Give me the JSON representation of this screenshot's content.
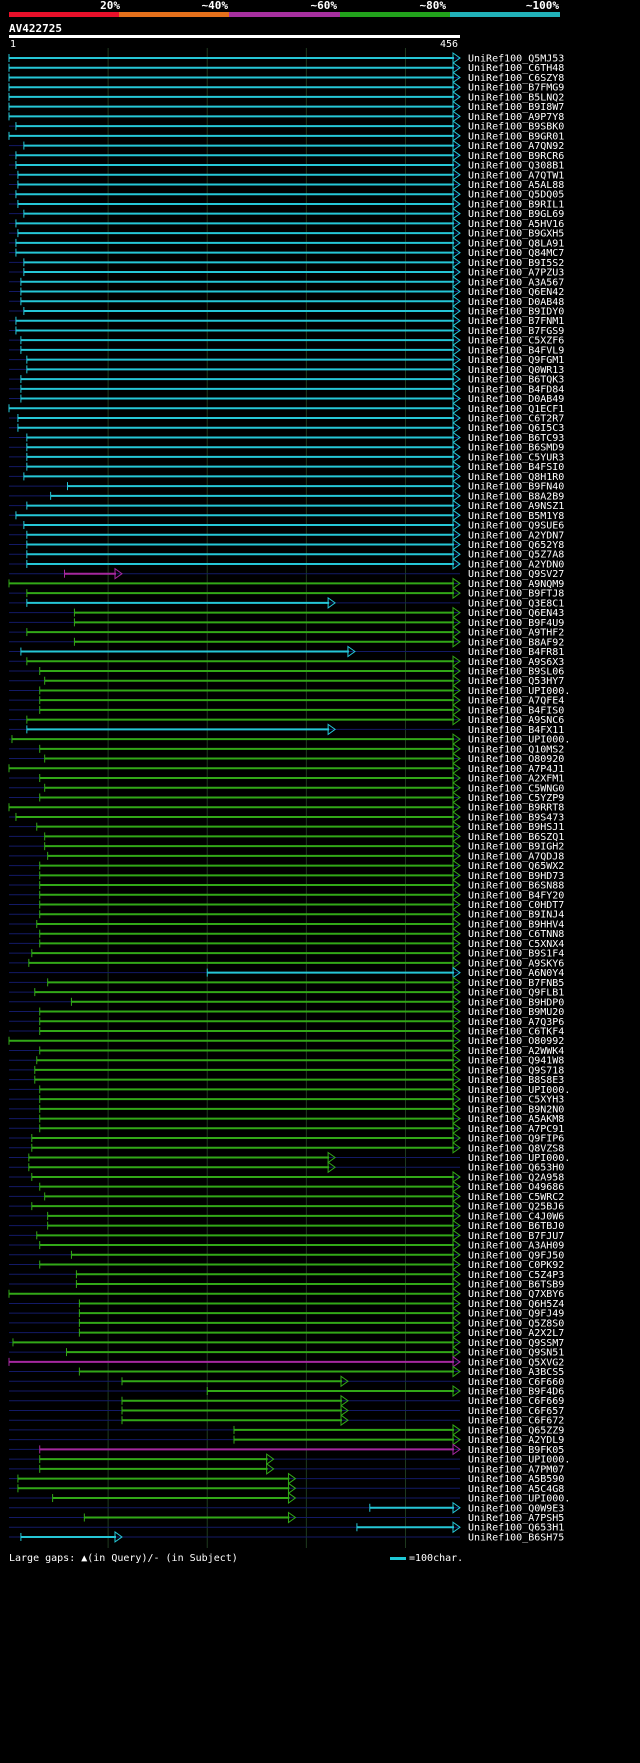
{
  "colors": {
    "bg": "#000000",
    "grid": "#1f3a1f",
    "baseline": "#131a66",
    "cyan": "#25c6d6",
    "green": "#32a817",
    "magenta": "#a5289f",
    "red": "#e8102a",
    "orange": "#e4701b",
    "purple": "#a7309f",
    "olive": "#22a21c",
    "teal": "#21b2b9",
    "gap": "#ffff88"
  },
  "scale": {
    "labels": [
      "20%",
      "~40%",
      "~60%",
      "~80%",
      "~100%"
    ],
    "colors": [
      "#e8102a",
      "#e4701b",
      "#a7309f",
      "#22a21c",
      "#21b2b9"
    ]
  },
  "query": {
    "id": "AV422725",
    "start": "1",
    "end": "456"
  },
  "legend": {
    "gaps_text": "Large gaps: ▲(in Query)/- (in Subject)",
    "scale_text": "=100char."
  },
  "chart_data": {
    "type": "alignment-overview",
    "query_length": 456,
    "hits": [
      {
        "name": "UniRef100_Q5MJ53",
        "start": 1,
        "end": 456,
        "color": "cyan"
      },
      {
        "name": "UniRef100_C6TH48",
        "start": 1,
        "end": 456,
        "color": "cyan"
      },
      {
        "name": "UniRef100_C6SZY8",
        "start": 1,
        "end": 456,
        "color": "cyan"
      },
      {
        "name": "UniRef100_B7FMG9",
        "start": 1,
        "end": 456,
        "color": "cyan"
      },
      {
        "name": "UniRef100_B5LNQ2",
        "start": 1,
        "end": 456,
        "color": "cyan"
      },
      {
        "name": "UniRef100_B9I8W7",
        "start": 1,
        "end": 456,
        "color": "cyan"
      },
      {
        "name": "UniRef100_A9P7Y8",
        "start": 1,
        "end": 456,
        "color": "cyan"
      },
      {
        "name": "UniRef100_B9SBK0",
        "start": 8,
        "end": 456,
        "color": "cyan"
      },
      {
        "name": "UniRef100_B9GR01",
        "start": 1,
        "end": 456,
        "color": "cyan"
      },
      {
        "name": "UniRef100_A7QN92",
        "start": 16,
        "end": 456,
        "color": "cyan"
      },
      {
        "name": "UniRef100_B9RCR6",
        "start": 8,
        "end": 456,
        "color": "cyan"
      },
      {
        "name": "UniRef100_Q308B1",
        "start": 8,
        "end": 456,
        "color": "cyan"
      },
      {
        "name": "UniRef100_A7QTW1",
        "start": 10,
        "end": 456,
        "color": "cyan"
      },
      {
        "name": "UniRef100_A5AL88",
        "start": 10,
        "end": 456,
        "color": "cyan"
      },
      {
        "name": "UniRef100_Q5DQ05",
        "start": 8,
        "end": 456,
        "color": "cyan"
      },
      {
        "name": "UniRef100_B9RIL1",
        "start": 10,
        "end": 456,
        "color": "cyan"
      },
      {
        "name": "UniRef100_B9GL69",
        "start": 16,
        "end": 456,
        "color": "cyan"
      },
      {
        "name": "UniRef100_A5HV16",
        "start": 8,
        "end": 456,
        "color": "cyan"
      },
      {
        "name": "UniRef100_B9GXH5",
        "start": 10,
        "end": 456,
        "color": "cyan"
      },
      {
        "name": "UniRef100_Q8LA91",
        "start": 8,
        "end": 456,
        "color": "cyan"
      },
      {
        "name": "UniRef100_Q84MC7",
        "start": 8,
        "end": 456,
        "color": "cyan"
      },
      {
        "name": "UniRef100_B9I5S2",
        "start": 16,
        "end": 456,
        "color": "cyan"
      },
      {
        "name": "UniRef100_A7PZU3",
        "start": 16,
        "end": 456,
        "color": "cyan"
      },
      {
        "name": "UniRef100_A3A567",
        "start": 13,
        "end": 456,
        "color": "cyan"
      },
      {
        "name": "UniRef100_Q6EN42",
        "start": 13,
        "end": 456,
        "color": "cyan"
      },
      {
        "name": "UniRef100_D0AB48",
        "start": 13,
        "end": 456,
        "color": "cyan"
      },
      {
        "name": "UniRef100_B9IDY0",
        "start": 16,
        "end": 456,
        "color": "cyan"
      },
      {
        "name": "UniRef100_B7FNM1",
        "start": 8,
        "end": 456,
        "color": "cyan"
      },
      {
        "name": "UniRef100_B7FGS9",
        "start": 8,
        "end": 456,
        "color": "cyan"
      },
      {
        "name": "UniRef100_C5XZF6",
        "start": 13,
        "end": 456,
        "color": "cyan"
      },
      {
        "name": "UniRef100_B4FVL9",
        "start": 13,
        "end": 456,
        "color": "cyan"
      },
      {
        "name": "UniRef100_Q9FGM1",
        "start": 19,
        "end": 456,
        "color": "cyan"
      },
      {
        "name": "UniRef100_Q0WR13",
        "start": 19,
        "end": 456,
        "color": "cyan"
      },
      {
        "name": "UniRef100_B6TQK3",
        "start": 13,
        "end": 456,
        "color": "cyan"
      },
      {
        "name": "UniRef100_B4FD84",
        "start": 13,
        "end": 456,
        "color": "cyan"
      },
      {
        "name": "UniRef100_D0AB49",
        "start": 13,
        "end": 456,
        "color": "cyan"
      },
      {
        "name": "UniRef100_Q1ECF1",
        "start": 1,
        "end": 456,
        "color": "cyan"
      },
      {
        "name": "UniRef100_C6T2R7",
        "start": 10,
        "end": 456,
        "color": "cyan"
      },
      {
        "name": "UniRef100_Q6I5C3",
        "start": 10,
        "end": 456,
        "color": "cyan"
      },
      {
        "name": "UniRef100_B6TC93",
        "start": 19,
        "end": 456,
        "color": "cyan"
      },
      {
        "name": "UniRef100_B6SMD9",
        "start": 19,
        "end": 456,
        "color": "cyan"
      },
      {
        "name": "UniRef100_C5YUR3",
        "start": 19,
        "end": 456,
        "color": "cyan"
      },
      {
        "name": "UniRef100_B4FSI0",
        "start": 19,
        "end": 456,
        "color": "cyan"
      },
      {
        "name": "UniRef100_Q8H1R0",
        "start": 16,
        "end": 456,
        "color": "cyan"
      },
      {
        "name": "UniRef100_B9FN40",
        "start": 60,
        "end": 456,
        "color": "cyan"
      },
      {
        "name": "UniRef100_B8A2B9",
        "start": 43,
        "end": 456,
        "color": "cyan"
      },
      {
        "name": "UniRef100_A9NSZ1",
        "start": 19,
        "end": 456,
        "color": "cyan"
      },
      {
        "name": "UniRef100_B5M1Y8",
        "start": 8,
        "end": 456,
        "color": "cyan"
      },
      {
        "name": "UniRef100_Q9SUE6",
        "start": 16,
        "end": 456,
        "color": "cyan"
      },
      {
        "name": "UniRef100_A2YDN7",
        "start": 19,
        "end": 456,
        "color": "cyan"
      },
      {
        "name": "UniRef100_Q652Y8",
        "start": 19,
        "end": 456,
        "color": "cyan"
      },
      {
        "name": "UniRef100_Q5Z7A8",
        "start": 19,
        "end": 456,
        "color": "cyan"
      },
      {
        "name": "UniRef100_A2YDN0",
        "start": 19,
        "end": 456,
        "color": "cyan"
      },
      {
        "name": "UniRef100_Q9SV27",
        "start": 57,
        "end": 115,
        "color": "magenta"
      },
      {
        "name": "UniRef100_A9NQM9",
        "start": 1,
        "end": 456,
        "color": "green"
      },
      {
        "name": "UniRef100_B9FTJ8",
        "start": 19,
        "end": 456,
        "color": "green"
      },
      {
        "name": "UniRef100_Q3E8C1",
        "start": 19,
        "end": 330,
        "color": "cyan"
      },
      {
        "name": "UniRef100_Q6EN43",
        "start": 67,
        "end": 456,
        "color": "green"
      },
      {
        "name": "UniRef100_B9F4U9",
        "start": 67,
        "end": 456,
        "color": "green"
      },
      {
        "name": "UniRef100_A9THF2",
        "start": 19,
        "end": 456,
        "color": "green"
      },
      {
        "name": "UniRef100_B8AF92",
        "start": 67,
        "end": 456,
        "color": "green"
      },
      {
        "name": "UniRef100_B4FR81",
        "start": 13,
        "end": 350,
        "color": "cyan"
      },
      {
        "name": "UniRef100_A9S6X3",
        "start": 19,
        "end": 456,
        "color": "green"
      },
      {
        "name": "UniRef100_B9SL06",
        "start": 32,
        "end": 456,
        "color": "green"
      },
      {
        "name": "UniRef100_Q53HY7",
        "start": 37,
        "end": 456,
        "color": "green"
      },
      {
        "name": "UniRef100_UPI000..",
        "start": 32,
        "end": 456,
        "color": "green"
      },
      {
        "name": "UniRef100_A7QFE4",
        "start": 32,
        "end": 456,
        "color": "green"
      },
      {
        "name": "UniRef100_B4FIS0",
        "start": 32,
        "end": 456,
        "color": "green"
      },
      {
        "name": "UniRef100_A9SNC6",
        "start": 19,
        "end": 456,
        "color": "green"
      },
      {
        "name": "UniRef100_B4FX11",
        "start": 19,
        "end": 330,
        "color": "cyan"
      },
      {
        "name": "UniRef100_UPI000..",
        "start": 4,
        "end": 456,
        "color": "green"
      },
      {
        "name": "UniRef100_Q10MS2",
        "start": 32,
        "end": 456,
        "color": "green"
      },
      {
        "name": "UniRef100_O80920",
        "start": 37,
        "end": 456,
        "color": "green"
      },
      {
        "name": "UniRef100_A7P4J1",
        "start": 1,
        "end": 456,
        "color": "green"
      },
      {
        "name": "UniRef100_A2XFM1",
        "start": 32,
        "end": 456,
        "color": "green"
      },
      {
        "name": "UniRef100_C5WNG0",
        "start": 37,
        "end": 456,
        "color": "green"
      },
      {
        "name": "UniRef100_C5YZP9",
        "start": 32,
        "end": 456,
        "color": "green"
      },
      {
        "name": "UniRef100_B9RRT8",
        "start": 1,
        "end": 456,
        "color": "green"
      },
      {
        "name": "UniRef100_B9S473",
        "start": 8,
        "end": 456,
        "color": "green"
      },
      {
        "name": "UniRef100_B9HSJ1",
        "start": 29,
        "end": 456,
        "color": "green"
      },
      {
        "name": "UniRef100_B6SZQ1",
        "start": 37,
        "end": 456,
        "color": "green"
      },
      {
        "name": "UniRef100_B9IGH2",
        "start": 37,
        "end": 456,
        "color": "green"
      },
      {
        "name": "UniRef100_A7QDJ8",
        "start": 40,
        "end": 456,
        "color": "green"
      },
      {
        "name": "UniRef100_Q65WX2",
        "start": 32,
        "end": 456,
        "color": "green"
      },
      {
        "name": "UniRef100_B9HD73",
        "start": 32,
        "end": 456,
        "color": "green"
      },
      {
        "name": "UniRef100_B6SN88",
        "start": 32,
        "end": 456,
        "color": "green"
      },
      {
        "name": "UniRef100_B4FY20",
        "start": 32,
        "end": 456,
        "color": "green"
      },
      {
        "name": "UniRef100_C0HDT7",
        "start": 32,
        "end": 456,
        "color": "green"
      },
      {
        "name": "UniRef100_B9INJ4",
        "start": 32,
        "end": 456,
        "color": "green"
      },
      {
        "name": "UniRef100_B9HHV4",
        "start": 29,
        "end": 456,
        "color": "green"
      },
      {
        "name": "UniRef100_C6TNN8",
        "start": 32,
        "end": 456,
        "color": "green"
      },
      {
        "name": "UniRef100_C5XNX4",
        "start": 32,
        "end": 456,
        "color": "green"
      },
      {
        "name": "UniRef100_B9S1F4",
        "start": 24,
        "end": 456,
        "color": "green"
      },
      {
        "name": "UniRef100_A9SKY6",
        "start": 21,
        "end": 456,
        "color": "green"
      },
      {
        "name": "UniRef100_A6N0Y4",
        "start": 201,
        "end": 456,
        "color": "cyan"
      },
      {
        "name": "UniRef100_B7FNB5",
        "start": 40,
        "end": 456,
        "color": "green"
      },
      {
        "name": "UniRef100_Q9FLB1",
        "start": 27,
        "end": 456,
        "color": "green"
      },
      {
        "name": "UniRef100_B9HDP0",
        "start": 64,
        "end": 456,
        "color": "green"
      },
      {
        "name": "UniRef100_B9MU20",
        "start": 32,
        "end": 456,
        "color": "green"
      },
      {
        "name": "UniRef100_A7Q3P6",
        "start": 32,
        "end": 456,
        "color": "green"
      },
      {
        "name": "UniRef100_C6TKF4",
        "start": 32,
        "end": 456,
        "color": "green"
      },
      {
        "name": "UniRef100_O80992",
        "start": 1,
        "end": 456,
        "color": "green"
      },
      {
        "name": "UniRef100_A2WWK4",
        "start": 32,
        "end": 456,
        "color": "green"
      },
      {
        "name": "UniRef100_Q941W8",
        "start": 29,
        "end": 456,
        "color": "green"
      },
      {
        "name": "UniRef100_Q9S718",
        "start": 27,
        "end": 456,
        "color": "green"
      },
      {
        "name": "UniRef100_B8S8E3",
        "start": 27,
        "end": 456,
        "color": "green"
      },
      {
        "name": "UniRef100_UPI000..",
        "start": 32,
        "end": 456,
        "color": "green"
      },
      {
        "name": "UniRef100_C5XYH3",
        "start": 32,
        "end": 456,
        "color": "green"
      },
      {
        "name": "UniRef100_B9N2N0",
        "start": 32,
        "end": 456,
        "color": "green"
      },
      {
        "name": "UniRef100_A5AKM8",
        "start": 32,
        "end": 456,
        "color": "green"
      },
      {
        "name": "UniRef100_A7PC91",
        "start": 32,
        "end": 456,
        "color": "green"
      },
      {
        "name": "UniRef100_Q9FIP6",
        "start": 24,
        "end": 456,
        "color": "green"
      },
      {
        "name": "UniRef100_Q8VZS8",
        "start": 24,
        "end": 456,
        "color": "green"
      },
      {
        "name": "UniRef100_UPI000..",
        "start": 21,
        "end": 330,
        "color": "green"
      },
      {
        "name": "UniRef100_Q653H0",
        "start": 21,
        "end": 330,
        "color": "green"
      },
      {
        "name": "UniRef100_Q2A958",
        "start": 24,
        "end": 456,
        "color": "green"
      },
      {
        "name": "UniRef100_O49686",
        "start": 32,
        "end": 456,
        "color": "green"
      },
      {
        "name": "UniRef100_C5WRC2",
        "start": 37,
        "end": 456,
        "color": "green"
      },
      {
        "name": "UniRef100_Q25BJ6",
        "start": 24,
        "end": 456,
        "color": "green"
      },
      {
        "name": "UniRef100_C4J0W6",
        "start": 40,
        "end": 456,
        "color": "green"
      },
      {
        "name": "UniRef100_B6TBJ0",
        "start": 40,
        "end": 456,
        "color": "green"
      },
      {
        "name": "UniRef100_B7FJU7",
        "start": 29,
        "end": 456,
        "color": "green"
      },
      {
        "name": "UniRef100_A3AH09",
        "start": 32,
        "end": 456,
        "color": "green"
      },
      {
        "name": "UniRef100_Q9FJ50",
        "start": 64,
        "end": 456,
        "color": "green"
      },
      {
        "name": "UniRef100_C0PK92",
        "start": 32,
        "end": 456,
        "color": "green"
      },
      {
        "name": "UniRef100_C5Z4P3",
        "start": 69,
        "end": 456,
        "color": "green"
      },
      {
        "name": "UniRef100_B6TSB9",
        "start": 69,
        "end": 456,
        "color": "green"
      },
      {
        "name": "UniRef100_Q7XBY6",
        "start": 1,
        "end": 456,
        "color": "green"
      },
      {
        "name": "UniRef100_Q6H5Z4",
        "start": 72,
        "end": 456,
        "color": "green"
      },
      {
        "name": "UniRef100_Q9FJ49",
        "start": 72,
        "end": 456,
        "color": "green"
      },
      {
        "name": "UniRef100_Q5Z8S0",
        "start": 72,
        "end": 456,
        "color": "green"
      },
      {
        "name": "UniRef100_A2X2L7",
        "start": 72,
        "end": 456,
        "color": "green"
      },
      {
        "name": "UniRef100_Q9SSM7",
        "start": 5,
        "end": 456,
        "color": "green"
      },
      {
        "name": "UniRef100_Q9SN51",
        "start": 59,
        "end": 456,
        "color": "green"
      },
      {
        "name": "UniRef100_Q5XVG2",
        "start": 1,
        "end": 456,
        "color": "magenta"
      },
      {
        "name": "UniRef100_A3BCS5",
        "start": 72,
        "end": 456,
        "color": "green"
      },
      {
        "name": "UniRef100_C6F660",
        "start": 115,
        "end": 343,
        "color": "green"
      },
      {
        "name": "UniRef100_B9F4D6",
        "start": 201,
        "end": 456,
        "color": "green"
      },
      {
        "name": "UniRef100_C6F669",
        "start": 115,
        "end": 343,
        "color": "green"
      },
      {
        "name": "UniRef100_C6F657",
        "start": 115,
        "end": 343,
        "color": "green"
      },
      {
        "name": "UniRef100_C6F672",
        "start": 115,
        "end": 343,
        "color": "green"
      },
      {
        "name": "UniRef100_Q65ZZ9",
        "start": 228,
        "end": 456,
        "color": "green"
      },
      {
        "name": "UniRef100_A2YDL9",
        "start": 228,
        "end": 456,
        "color": "green"
      },
      {
        "name": "UniRef100_B9FK05",
        "start": 32,
        "end": 456,
        "color": "magenta"
      },
      {
        "name": "UniRef100_UPI000..",
        "start": 32,
        "end": 268,
        "color": "green"
      },
      {
        "name": "UniRef100_A7PM07",
        "start": 32,
        "end": 268,
        "color": "green"
      },
      {
        "name": "UniRef100_A5B590",
        "start": 10,
        "end": 290,
        "color": "green"
      },
      {
        "name": "UniRef100_A5C4G8",
        "start": 10,
        "end": 290,
        "color": "green"
      },
      {
        "name": "UniRef100_UPI000..",
        "start": 45,
        "end": 290,
        "color": "green"
      },
      {
        "name": "UniRef100_Q0W9E3",
        "start": 365,
        "end": 456,
        "color": "cyan"
      },
      {
        "name": "UniRef100_A7PSH5",
        "start": 77,
        "end": 290,
        "color": "green"
      },
      {
        "name": "UniRef100_Q653H1",
        "start": 352,
        "end": 456,
        "color": "cyan"
      },
      {
        "name": "UniRef100_B6SH75",
        "start": 13,
        "end": 115,
        "color": "cyan"
      }
    ]
  }
}
